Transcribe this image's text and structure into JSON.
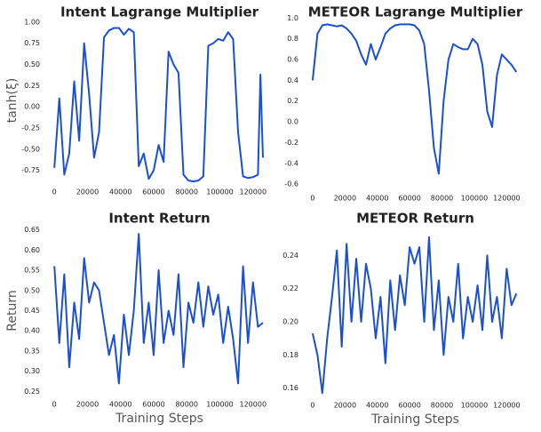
{
  "chart_data": [
    {
      "type": "line",
      "title": "Intent Lagrange Multiplier",
      "y_label": "tanh(ξ)",
      "x": [
        0,
        3000,
        6000,
        9000,
        12000,
        15000,
        18000,
        21000,
        24000,
        27000,
        30000,
        33000,
        36000,
        39000,
        42000,
        45000,
        48000,
        51000,
        54000,
        57000,
        60000,
        63000,
        66000,
        69000,
        72000,
        75000,
        78000,
        81000,
        84000,
        87000,
        90000,
        93000,
        96000,
        99000,
        102000,
        105000,
        108000,
        111000,
        114000,
        117000,
        120000,
        123000,
        124500,
        126000
      ],
      "series": [
        {
          "color": "#1a4fd6",
          "values": [
            -0.72,
            0.1,
            -0.8,
            -0.55,
            0.3,
            -0.4,
            0.75,
            0.15,
            -0.6,
            -0.3,
            0.82,
            0.9,
            0.93,
            0.93,
            0.85,
            0.92,
            0.88,
            -0.7,
            -0.55,
            -0.85,
            -0.75,
            -0.45,
            -0.65,
            0.65,
            0.5,
            0.4,
            -0.8,
            -0.87,
            -0.88,
            -0.87,
            -0.82,
            0.72,
            0.75,
            0.8,
            0.78,
            0.88,
            0.8,
            -0.3,
            -0.82,
            -0.84,
            -0.83,
            -0.8,
            0.38,
            -0.6
          ]
        }
      ],
      "xlim": [
        -6000,
        133000
      ],
      "xticks": [
        0,
        20000,
        40000,
        60000,
        80000,
        100000,
        120000
      ],
      "ylim": [
        -0.9,
        1.05
      ],
      "yticks": [
        -0.75,
        {
          "value": -0.5,
          "label": "-0.50"
        },
        -0.25,
        {
          "value": 0,
          "label": "0.00"
        },
        0.25,
        {
          "value": 0.5,
          "label": "0.50"
        },
        0.75,
        {
          "value": 1,
          "label": "1.00"
        }
      ]
    },
    {
      "type": "line",
      "title": "METEOR Lagrange Multiplier",
      "x": [
        0,
        3000,
        6000,
        9000,
        12000,
        15000,
        18000,
        21000,
        24000,
        27000,
        30000,
        33000,
        36000,
        39000,
        42000,
        45000,
        48000,
        51000,
        54000,
        57000,
        60000,
        63000,
        66000,
        69000,
        72000,
        75000,
        78000,
        81000,
        84000,
        87000,
        90000,
        93000,
        96000,
        99000,
        102000,
        105000,
        108000,
        111000,
        114000,
        117000,
        120000,
        123000,
        126000
      ],
      "series": [
        {
          "color": "#1a4fd6",
          "values": [
            0.4,
            0.85,
            0.93,
            0.94,
            0.93,
            0.92,
            0.93,
            0.9,
            0.85,
            0.78,
            0.65,
            0.55,
            0.75,
            0.6,
            0.72,
            0.85,
            0.9,
            0.93,
            0.94,
            0.94,
            0.94,
            0.93,
            0.88,
            0.75,
            0.3,
            -0.25,
            -0.5,
            0.2,
            0.6,
            0.75,
            0.72,
            0.7,
            0.7,
            0.8,
            0.75,
            0.55,
            0.1,
            -0.05,
            0.45,
            0.65,
            0.6,
            0.55,
            0.48
          ]
        }
      ],
      "xlim": [
        -6000,
        133000
      ],
      "xticks": [
        0,
        20000,
        40000,
        60000,
        80000,
        100000,
        120000
      ],
      "ylim": [
        -0.65,
        1.02
      ],
      "yticks": [
        -0.6,
        -0.4,
        -0.2,
        {
          "value": 0,
          "label": "0.0"
        },
        0.2,
        0.4,
        0.6,
        0.8,
        {
          "value": 1,
          "label": "1.0"
        }
      ]
    },
    {
      "type": "line",
      "title": "Intent Return",
      "y_label": "Return",
      "x_label": "Training Steps",
      "x": [
        0,
        3000,
        6000,
        9000,
        12000,
        15000,
        18000,
        21000,
        24000,
        27000,
        30000,
        33000,
        36000,
        39000,
        42000,
        45000,
        48000,
        51000,
        54000,
        57000,
        60000,
        63000,
        66000,
        69000,
        72000,
        75000,
        78000,
        81000,
        84000,
        87000,
        90000,
        93000,
        96000,
        99000,
        102000,
        105000,
        108000,
        111000,
        114000,
        117000,
        120000,
        123000,
        126000
      ],
      "series": [
        {
          "color": "#1a4fd6",
          "values": [
            0.56,
            0.37,
            0.54,
            0.31,
            0.47,
            0.38,
            0.58,
            0.47,
            0.52,
            0.5,
            0.42,
            0.34,
            0.39,
            0.27,
            0.44,
            0.34,
            0.45,
            0.64,
            0.37,
            0.47,
            0.34,
            0.55,
            0.37,
            0.45,
            0.39,
            0.54,
            0.31,
            0.47,
            0.42,
            0.52,
            0.41,
            0.51,
            0.44,
            0.49,
            0.37,
            0.46,
            0.38,
            0.27,
            0.56,
            0.37,
            0.52,
            0.41,
            0.42
          ]
        }
      ],
      "xlim": [
        -6000,
        133000
      ],
      "xticks": [
        0,
        20000,
        40000,
        60000,
        80000,
        100000,
        120000
      ],
      "ylim": [
        0.24,
        0.66
      ],
      "yticks": [
        0.25,
        {
          "value": 0.3,
          "label": "0.30"
        },
        0.35,
        {
          "value": 0.4,
          "label": "0.40"
        },
        0.45,
        {
          "value": 0.5,
          "label": "0.50"
        },
        0.55,
        {
          "value": 0.6,
          "label": "0.60"
        },
        0.65
      ]
    },
    {
      "type": "line",
      "title": "METEOR Return",
      "x_label": "Training Steps",
      "x": [
        0,
        3000,
        6000,
        9000,
        12000,
        15000,
        18000,
        21000,
        24000,
        27000,
        30000,
        33000,
        36000,
        39000,
        42000,
        45000,
        48000,
        51000,
        54000,
        57000,
        60000,
        63000,
        66000,
        69000,
        72000,
        75000,
        78000,
        81000,
        84000,
        87000,
        90000,
        93000,
        96000,
        99000,
        102000,
        105000,
        108000,
        111000,
        114000,
        117000,
        120000,
        123000,
        126000
      ],
      "series": [
        {
          "color": "#1a4fd6",
          "values": [
            0.193,
            0.18,
            0.157,
            0.19,
            0.215,
            0.243,
            0.185,
            0.247,
            0.2,
            0.238,
            0.2,
            0.235,
            0.22,
            0.19,
            0.215,
            0.175,
            0.225,
            0.195,
            0.228,
            0.21,
            0.245,
            0.235,
            0.245,
            0.2,
            0.251,
            0.195,
            0.225,
            0.18,
            0.215,
            0.2,
            0.235,
            0.19,
            0.215,
            0.2,
            0.222,
            0.195,
            0.24,
            0.2,
            0.215,
            0.19,
            0.232,
            0.21,
            0.217
          ]
        }
      ],
      "xlim": [
        -6000,
        133000
      ],
      "xticks": [
        0,
        20000,
        40000,
        60000,
        80000,
        100000,
        120000
      ],
      "ylim": [
        0.155,
        0.252
      ],
      "yticks": [
        0.16,
        0.18,
        {
          "value": 0.2,
          "label": "0.20"
        },
        0.22,
        0.24
      ]
    }
  ]
}
